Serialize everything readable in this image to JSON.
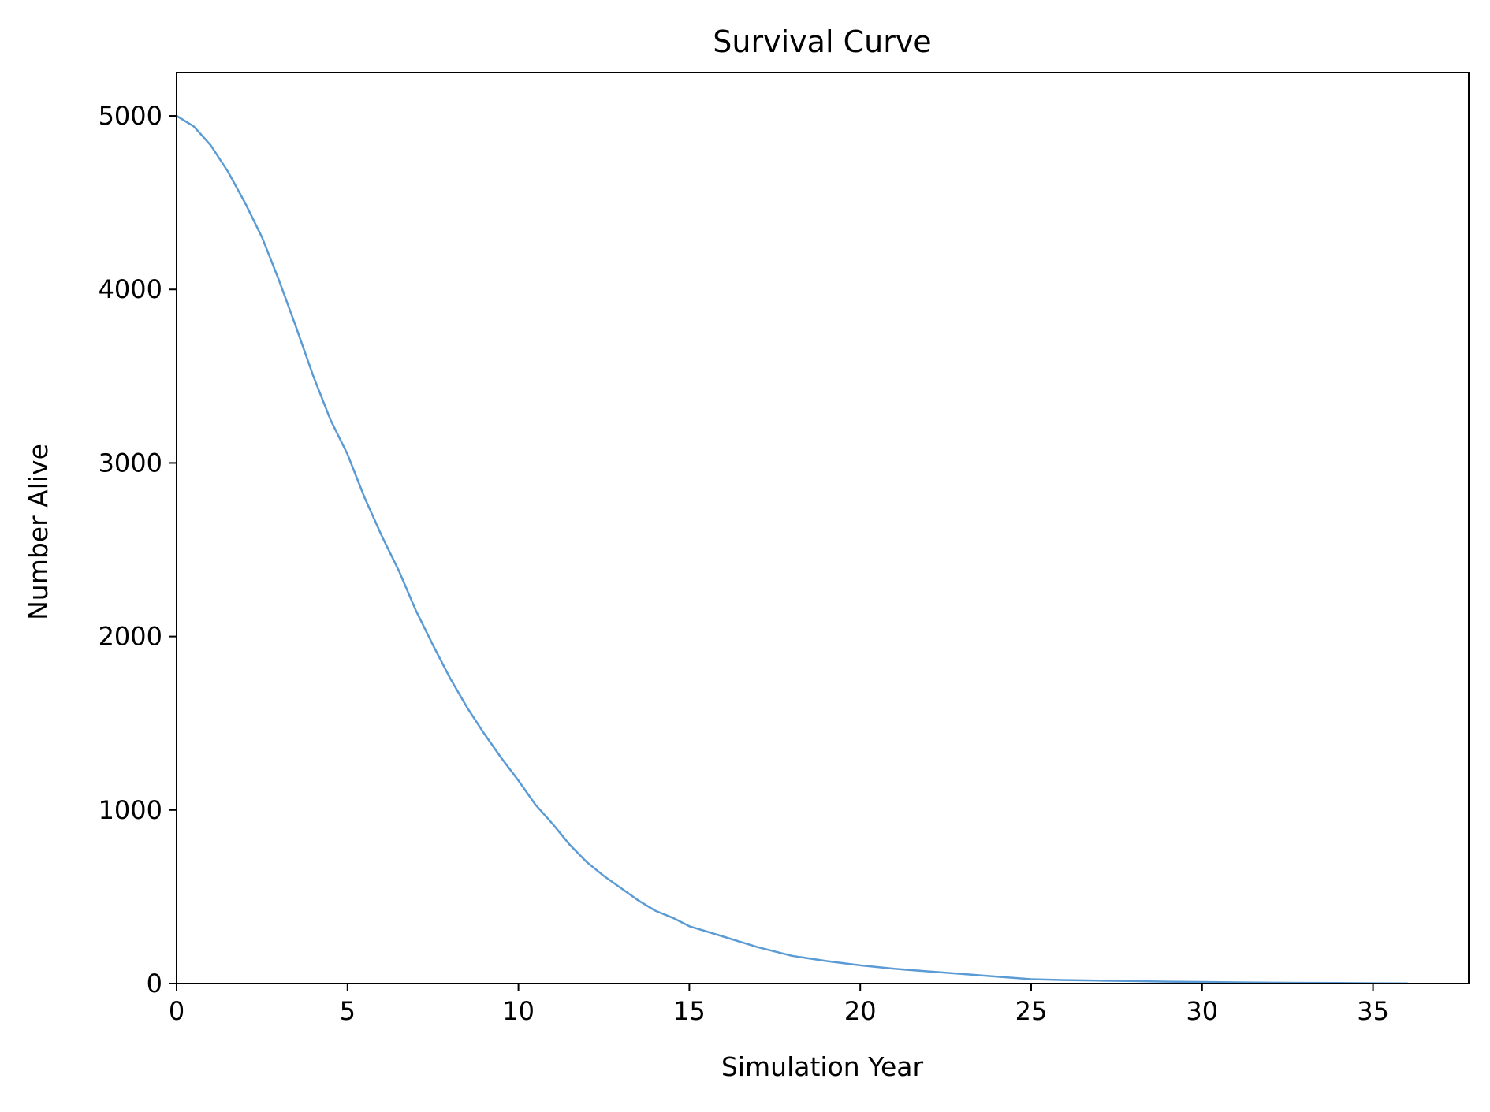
{
  "chart_data": {
    "type": "line",
    "title": "Survival Curve",
    "xlabel": "Simulation Year",
    "ylabel": "Number Alive",
    "xlim": [
      0,
      37.8
    ],
    "ylim": [
      0,
      5250
    ],
    "xticks": [
      0,
      5,
      10,
      15,
      20,
      25,
      30,
      35
    ],
    "yticks": [
      0,
      1000,
      2000,
      3000,
      4000,
      5000
    ],
    "grid": false,
    "line_color": "#5b9bd5",
    "series": [
      {
        "x": [
          0,
          0.5,
          1,
          1.5,
          2,
          2.5,
          3,
          3.5,
          4,
          4.5,
          5,
          5.5,
          6,
          6.5,
          7,
          7.5,
          8,
          8.5,
          9,
          9.5,
          10,
          10.5,
          11,
          11.5,
          12,
          12.5,
          13,
          13.5,
          14,
          14.5,
          15,
          16,
          17,
          18,
          19,
          20,
          21,
          22,
          23,
          24,
          25,
          26,
          27,
          28,
          29,
          30,
          31,
          32,
          33,
          34,
          35,
          36
        ],
        "y": [
          5000,
          4940,
          4830,
          4680,
          4500,
          4300,
          4050,
          3780,
          3500,
          3250,
          3050,
          2800,
          2580,
          2380,
          2150,
          1950,
          1760,
          1590,
          1440,
          1300,
          1170,
          1030,
          920,
          800,
          700,
          620,
          550,
          480,
          420,
          380,
          330,
          270,
          210,
          160,
          130,
          105,
          85,
          70,
          55,
          40,
          25,
          20,
          17,
          14,
          11,
          9,
          7,
          5,
          4,
          3,
          2,
          1
        ]
      }
    ]
  }
}
